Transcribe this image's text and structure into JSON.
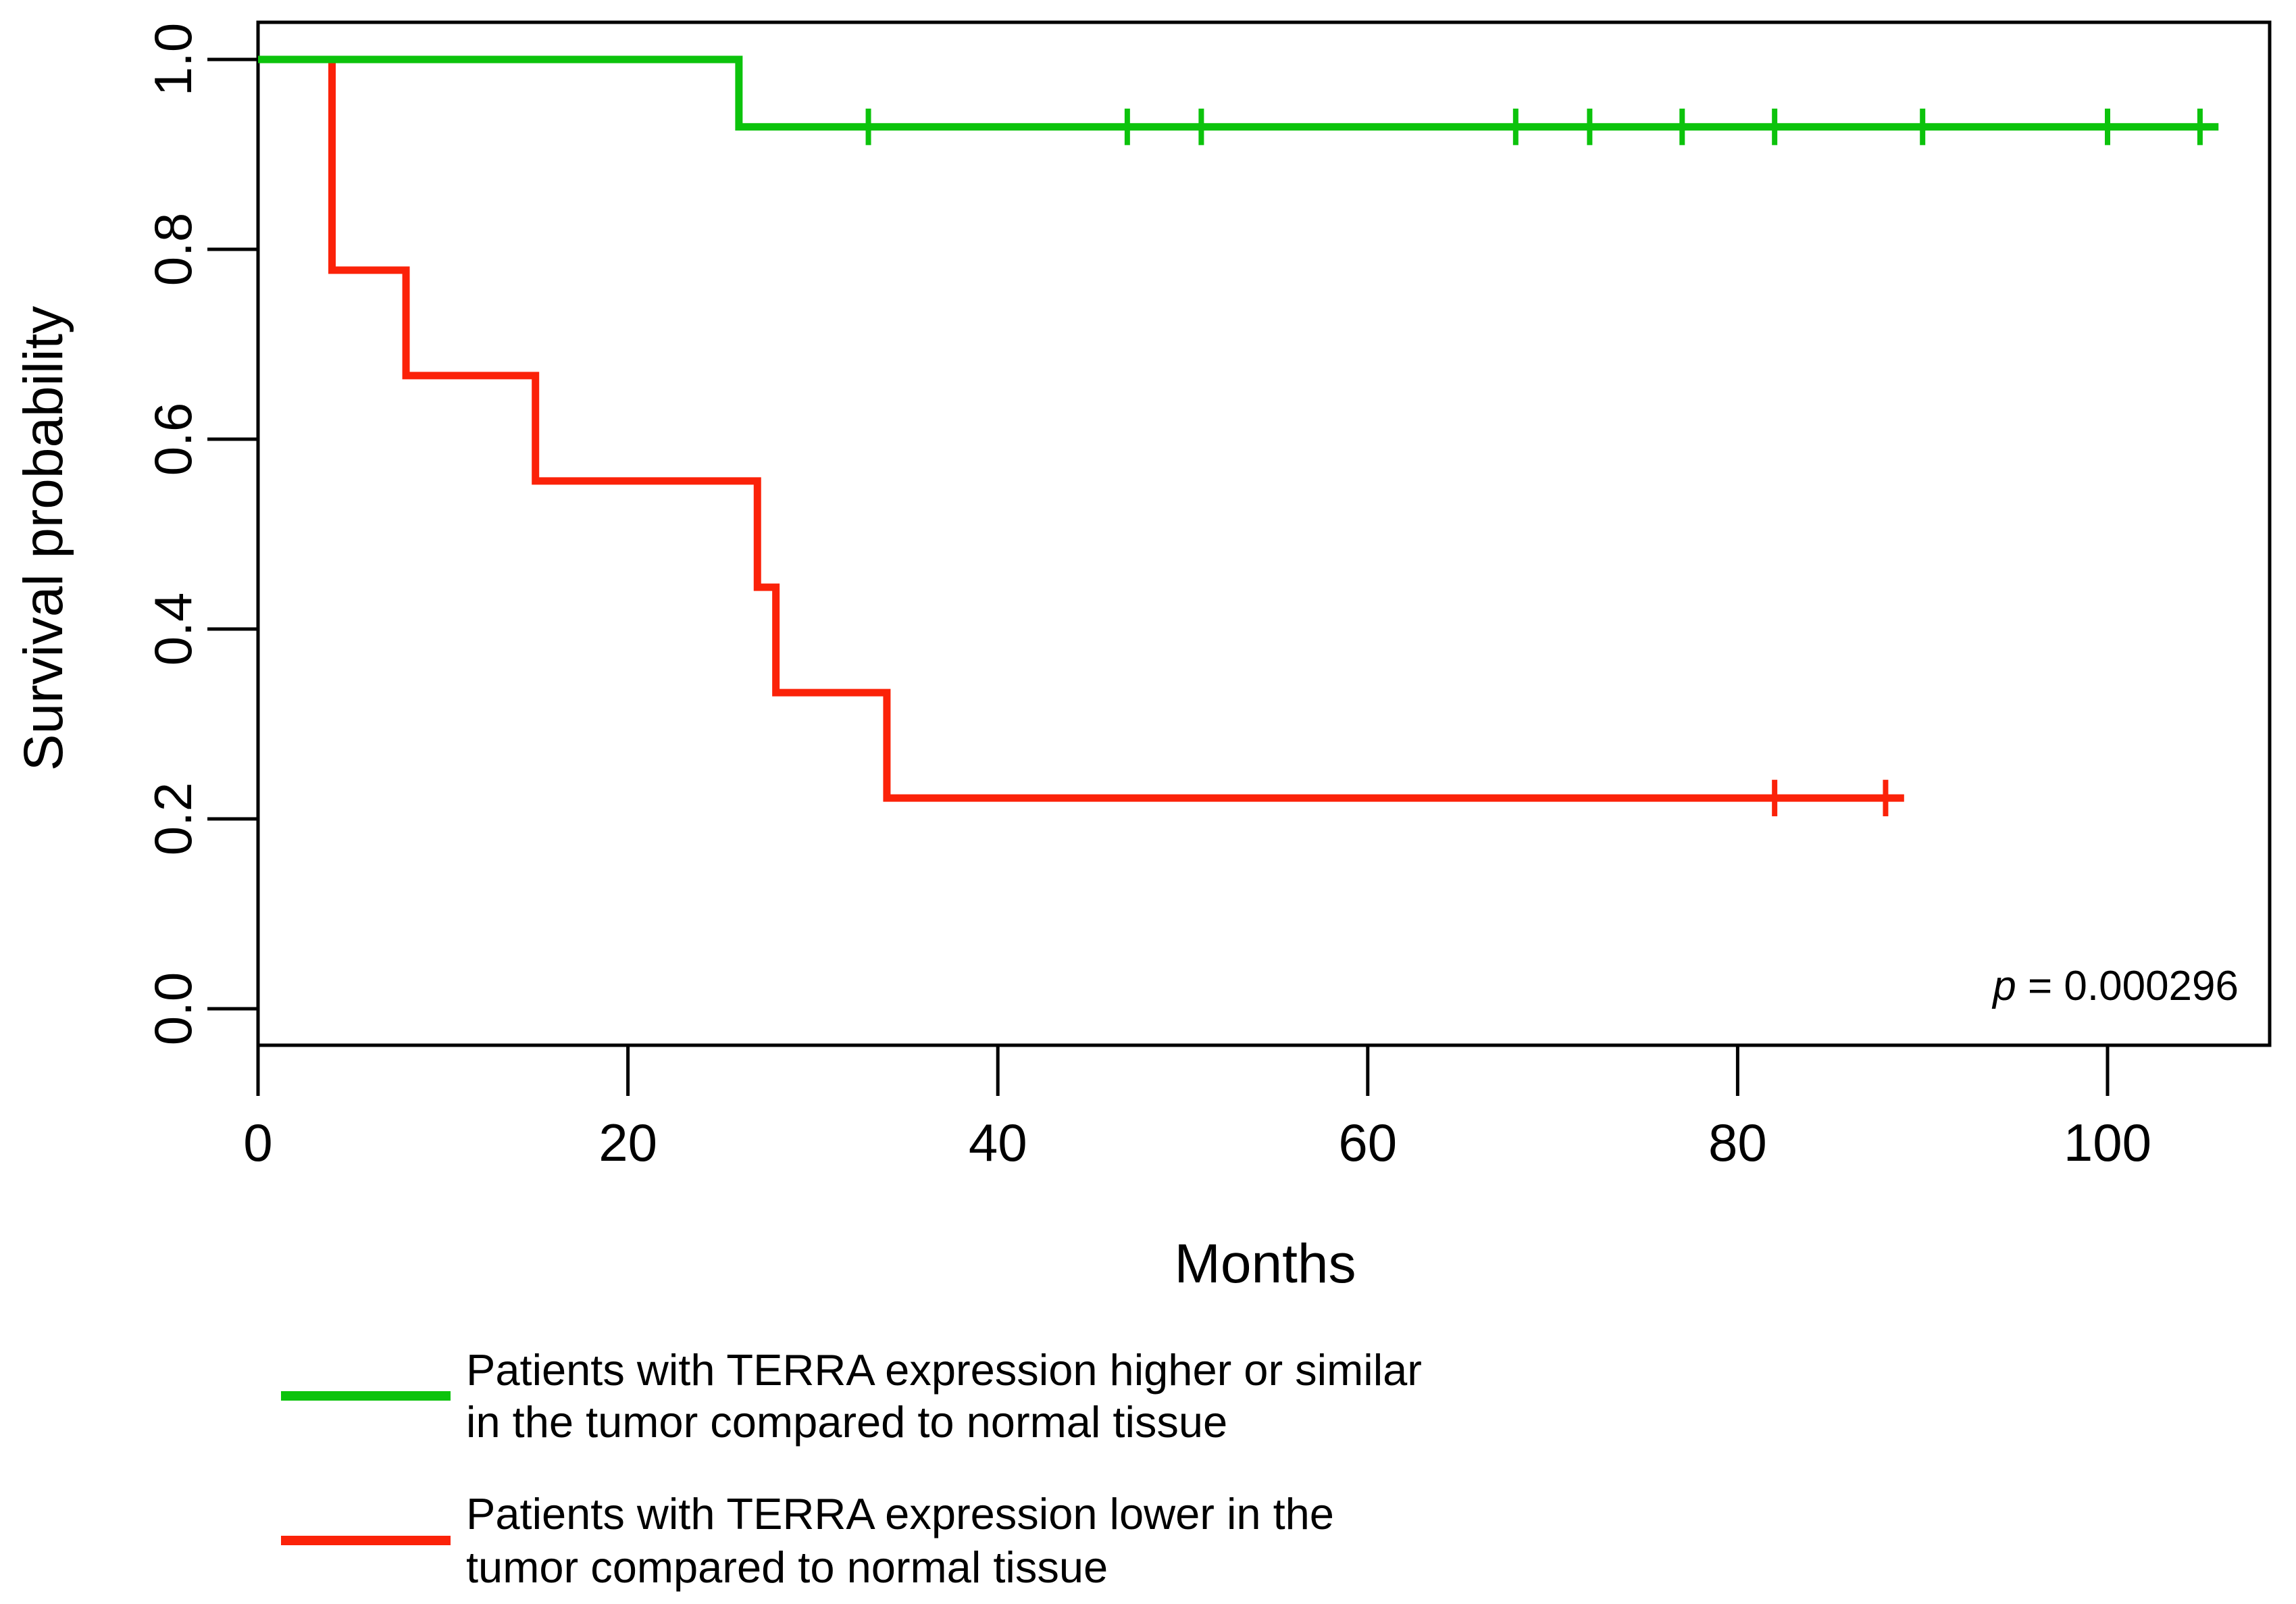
{
  "chart_data": {
    "type": "line",
    "subtype": "kaplan_meier_step",
    "title": "",
    "xlabel": "Months",
    "ylabel": "Survival probability",
    "xlim": [
      0,
      109
    ],
    "ylim": [
      0,
      1.04
    ],
    "grid": false,
    "legend_position": "below-chart-left",
    "x_tick_values": [
      0,
      20,
      40,
      60,
      80,
      100
    ],
    "x_tick_labels": [
      "0",
      "20",
      "40",
      "60",
      "80",
      "100"
    ],
    "y_tick_values": [
      0,
      0.2,
      0.4,
      0.6,
      0.8,
      1
    ],
    "y_tick_labels": [
      "0.0",
      "0.2",
      "0.4",
      "0.6",
      "0.8",
      "1.0"
    ],
    "p_value": {
      "italic": "p",
      "rest": " = 0.000296",
      "value": 0.000296
    },
    "series": [
      {
        "name": "TERRA expression higher or similar",
        "color": "#0CC30C",
        "legend_lines": [
          "Patients with TERRA expression higher or similar",
          "in the tumor compared to normal tissue"
        ],
        "step_points": [
          [
            0,
            1.0
          ],
          [
            26,
            1.0
          ],
          [
            26,
            0.929
          ],
          [
            106,
            0.929
          ]
        ],
        "censor_times": [
          33,
          47,
          51,
          68,
          72,
          77,
          82,
          90,
          100,
          105
        ],
        "censor_level": 0.929
      },
      {
        "name": "TERRA expression lower",
        "color": "#FB2209",
        "legend_lines": [
          "Patients with TERRA expression lower in the",
          "tumor compared to normal tissue"
        ],
        "step_points": [
          [
            0,
            1.0
          ],
          [
            4,
            1.0
          ],
          [
            4,
            0.778
          ],
          [
            8,
            0.778
          ],
          [
            8,
            0.667
          ],
          [
            15,
            0.667
          ],
          [
            15,
            0.556
          ],
          [
            27,
            0.556
          ],
          [
            27,
            0.444
          ],
          [
            28,
            0.444
          ],
          [
            28,
            0.333
          ],
          [
            34,
            0.333
          ],
          [
            34,
            0.222
          ],
          [
            89,
            0.222
          ]
        ],
        "censor_times": [
          82,
          88
        ],
        "censor_level": 0.222
      }
    ]
  }
}
